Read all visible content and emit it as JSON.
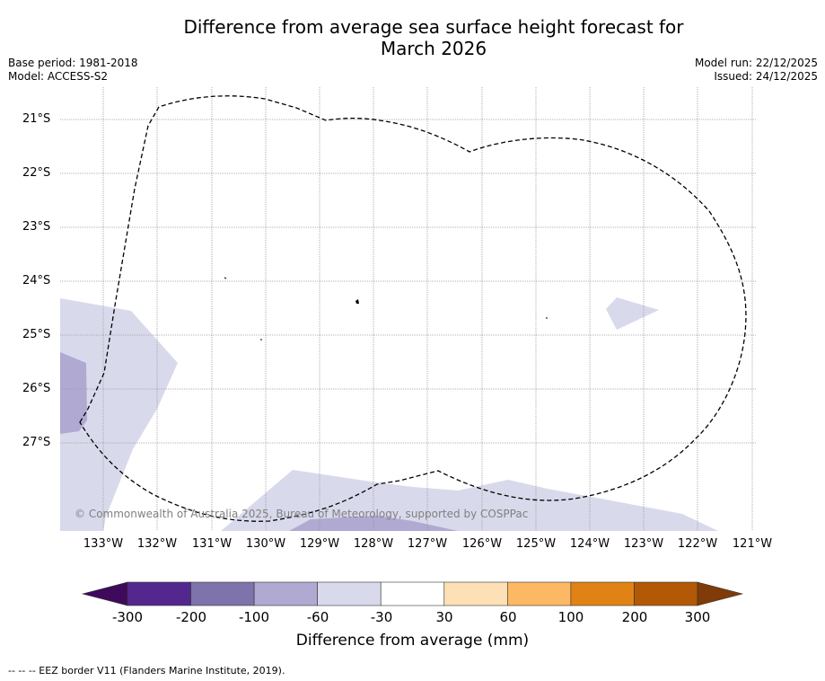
{
  "title_line1": "Difference from average sea surface height forecast for",
  "title_line2": "March 2026",
  "base_period": "Base period: 1981-2018",
  "model": "Model: ACCESS-S2",
  "model_run": "Model run: 22/12/2025",
  "issued": "Issued: 24/12/2025",
  "lat_labels": [
    "21°S",
    "22°S",
    "23°S",
    "24°S",
    "25°S",
    "26°S",
    "27°S"
  ],
  "lon_labels": [
    "133°W",
    "132°W",
    "131°W",
    "130°W",
    "129°W",
    "128°W",
    "127°W",
    "126°W",
    "125°W",
    "124°W",
    "123°W",
    "122°W",
    "121°W"
  ],
  "copyright": "© Commonwealth of Australia 2025, Bureau of Meteorology, supported by COSPPac",
  "colorbar": {
    "ticks": [
      "-300",
      "-200",
      "-100",
      "-60",
      "-30",
      "30",
      "60",
      "100",
      "200",
      "300"
    ],
    "colors": [
      "#3f0a5c",
      "#54278f",
      "#7f73ac",
      "#b0a9d1",
      "#d9d9ec",
      "#ffffff",
      "#fee0b6",
      "#fdb863",
      "#e08214",
      "#b35806",
      "#7f3b08"
    ],
    "label": "Difference from average (mm)"
  },
  "footnote": "--  --  -- EEZ border V11 (Flanders Marine Institute, 2019).",
  "map_colors": {
    "light_purple": "#d9d9ec",
    "medium_purple": "#b0a9d1",
    "grid": "#999999",
    "eez": "#000000"
  }
}
